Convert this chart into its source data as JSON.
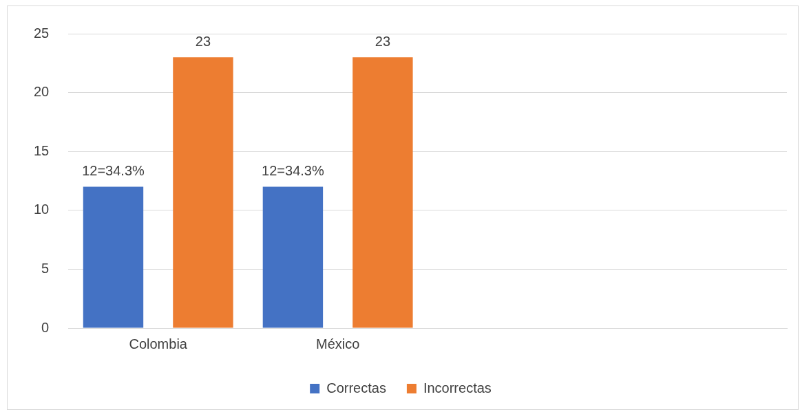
{
  "chart_data": {
    "type": "bar",
    "categories": [
      "Colombia",
      "México",
      null,
      null
    ],
    "series": [
      {
        "name": "Correctas",
        "color": "#4472c4",
        "values": [
          12,
          12,
          null,
          null
        ],
        "value_labels": [
          "12=34.3%",
          "12=34.3%",
          null,
          null
        ]
      },
      {
        "name": "Incorrectas",
        "color": "#ed7d31",
        "values": [
          23,
          23,
          null,
          null
        ],
        "value_labels": [
          "23",
          "23",
          null,
          null
        ]
      }
    ],
    "ylim": [
      0,
      25
    ],
    "yticks": [
      0,
      5,
      10,
      15,
      20,
      25
    ],
    "grid": "y",
    "legend": "bottom"
  }
}
